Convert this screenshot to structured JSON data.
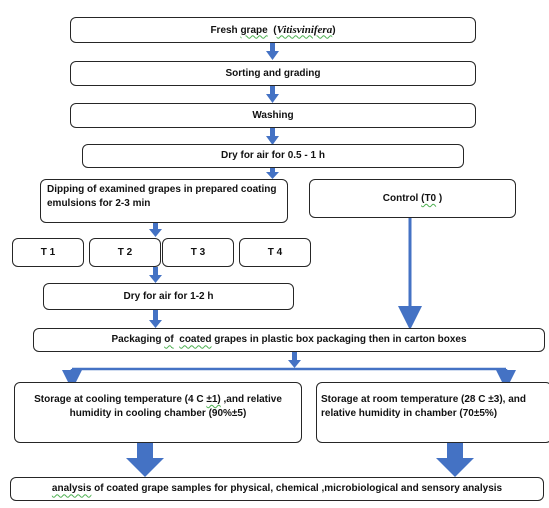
{
  "steps": {
    "fresh_grape": {
      "prefix": "Fresh ",
      "squiggle": "grape",
      "middle": "  (",
      "italic": "Vitisvinifera",
      "suffix": ")"
    },
    "sorting": "Sorting and grading",
    "washing": "Washing",
    "dry1": "Dry for air for 0.5 - 1 h",
    "dipping": "Dipping of examined grapes in prepared coating emulsions for 2-3 min",
    "control": {
      "prefix": "Control ",
      "squiggle": "(T0",
      "suffix": " )"
    },
    "treatments": [
      "T 1",
      "T 2",
      "T 3",
      "T 4"
    ],
    "dry2": "Dry for air for 1-2 h",
    "packaging": {
      "prefix": "Packaging ",
      "squiggle1": "of",
      "mid": "  ",
      "squiggle2": "coated",
      "suffix": " grapes in plastic box packaging then in carton boxes"
    },
    "storage_cool": {
      "prefix": "Storage at cooling temperature (4 C ",
      "squiggle": "±1)",
      "suffix": " ,and relative humidity in cooling chamber (90%±5)"
    },
    "storage_room": "Storage at room temperature (28 C ±3), and relative humidity in chamber (70±5%)",
    "analysis": {
      "squiggle": "analysis",
      "suffix": " of coated grape samples for physical, chemical ,microbiological and sensory analysis"
    }
  },
  "colors": {
    "arrow": "#4472c4",
    "border": "#262626",
    "squiggle": "#4caf50"
  }
}
